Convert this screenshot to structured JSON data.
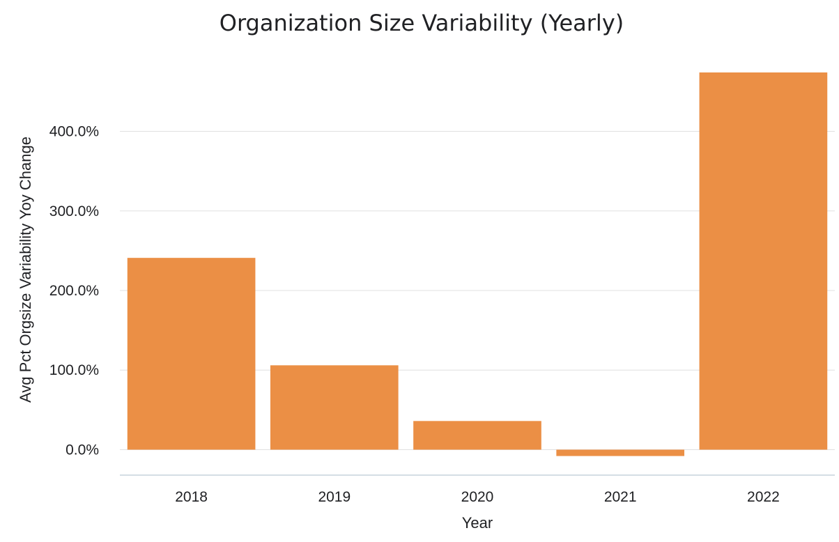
{
  "chart_data": {
    "type": "bar",
    "title": "Organization Size Variability (Yearly)",
    "xlabel": "Year",
    "ylabel": "Avg Pct Orgsize Variability Yoy Change",
    "categories": [
      "2018",
      "2019",
      "2020",
      "2021",
      "2022"
    ],
    "values": [
      241,
      106,
      36,
      -8,
      474
    ],
    "ylim": [
      -32,
      474
    ],
    "yticks": [
      0,
      100,
      200,
      300,
      400
    ],
    "ytick_labels": [
      "0.0%",
      "100.0%",
      "200.0%",
      "300.0%",
      "400.0%"
    ],
    "grid": true,
    "bar_color": "#EB8F45",
    "grid_color": "#E0E0E0",
    "axis_color": "#C5D3DC"
  }
}
